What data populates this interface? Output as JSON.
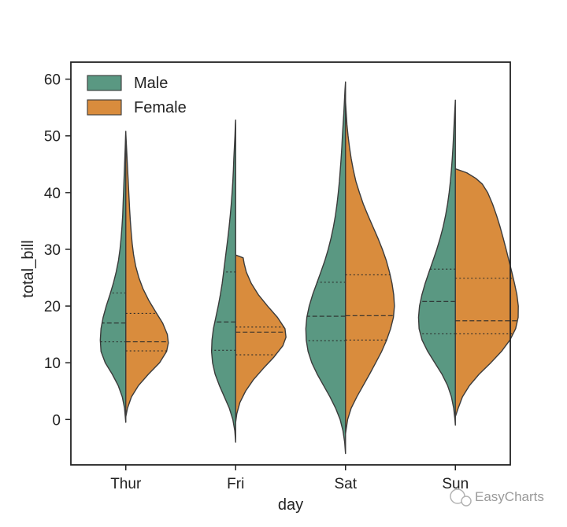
{
  "chart_data": {
    "type": "violin",
    "split": true,
    "inner": "quartile",
    "xlabel": "day",
    "ylabel": "total_bill",
    "ylim": [
      -8,
      63
    ],
    "yticks": [
      0,
      10,
      20,
      30,
      40,
      50,
      60
    ],
    "categories": [
      "Thur",
      "Fri",
      "Sat",
      "Sun"
    ],
    "legend": {
      "location": "top-left"
    },
    "series": [
      {
        "name": "Male",
        "color": "#5a9882",
        "side": "left",
        "violins": [
          {
            "category": "Thur",
            "min": -0.5,
            "max": 50.8,
            "q1": 13.7,
            "median": 17.0,
            "q3": 22.3,
            "profile": [
              [
                -0.5,
                0
              ],
              [
                0,
                0.2
              ],
              [
                2,
                0.9
              ],
              [
                4,
                2.5
              ],
              [
                6,
                5.4
              ],
              [
                8,
                9.6
              ],
              [
                10,
                14.5
              ],
              [
                12,
                17.5
              ],
              [
                14,
                18
              ],
              [
                16,
                17.5
              ],
              [
                18,
                16
              ],
              [
                20,
                13.8
              ],
              [
                22,
                11.2
              ],
              [
                24,
                8.8
              ],
              [
                26,
                6.8
              ],
              [
                28,
                5.2
              ],
              [
                30,
                4.1
              ],
              [
                32,
                3.3
              ],
              [
                34,
                2.7
              ],
              [
                36,
                2.2
              ],
              [
                38,
                1.9
              ],
              [
                40,
                1.6
              ],
              [
                42,
                1.3
              ],
              [
                44,
                1
              ],
              [
                46,
                0.7
              ],
              [
                48,
                0.4
              ],
              [
                50,
                0.15
              ],
              [
                50.8,
                0
              ]
            ]
          },
          {
            "category": "Fri",
            "min": -4,
            "max": 52.8,
            "q1": 12.2,
            "median": 17.2,
            "q3": 26.0,
            "profile": [
              [
                -4,
                0
              ],
              [
                -2,
                0.6
              ],
              [
                0,
                2
              ],
              [
                2,
                4.5
              ],
              [
                4,
                8
              ],
              [
                6,
                11.5
              ],
              [
                8,
                14.5
              ],
              [
                10,
                16.3
              ],
              [
                12,
                17
              ],
              [
                14,
                16.7
              ],
              [
                16,
                15.7
              ],
              [
                18,
                14
              ],
              [
                20,
                12.3
              ],
              [
                22,
                10.8
              ],
              [
                24,
                9.5
              ],
              [
                26,
                8.5
              ],
              [
                28,
                7.5
              ],
              [
                30,
                6.5
              ],
              [
                32,
                5.5
              ],
              [
                34,
                4.6
              ],
              [
                36,
                3.8
              ],
              [
                38,
                3.1
              ],
              [
                40,
                2.5
              ],
              [
                42,
                2
              ],
              [
                44,
                1.6
              ],
              [
                46,
                1.3
              ],
              [
                48,
                0.9
              ],
              [
                50,
                0.5
              ],
              [
                52,
                0.2
              ],
              [
                52.8,
                0
              ]
            ]
          },
          {
            "category": "Sat",
            "min": -6,
            "max": 59.5,
            "q1": 13.9,
            "median": 18.2,
            "q3": 24.2,
            "profile": [
              [
                -6,
                0
              ],
              [
                -4,
                0.6
              ],
              [
                -2,
                1.8
              ],
              [
                0,
                3.8
              ],
              [
                2,
                7
              ],
              [
                4,
                11
              ],
              [
                6,
                15.5
              ],
              [
                8,
                20
              ],
              [
                10,
                23.8
              ],
              [
                12,
                26.4
              ],
              [
                14,
                27.7
              ],
              [
                16,
                28
              ],
              [
                18,
                27.3
              ],
              [
                20,
                25.6
              ],
              [
                22,
                23.2
              ],
              [
                24,
                20.3
              ],
              [
                26,
                17.4
              ],
              [
                28,
                14.6
              ],
              [
                30,
                12.2
              ],
              [
                32,
                10.2
              ],
              [
                34,
                8.5
              ],
              [
                36,
                7.1
              ],
              [
                38,
                6
              ],
              [
                40,
                5.1
              ],
              [
                42,
                4.3
              ],
              [
                44,
                3.7
              ],
              [
                46,
                3.1
              ],
              [
                48,
                2.6
              ],
              [
                50,
                2.2
              ],
              [
                52,
                1.7
              ],
              [
                54,
                1.2
              ],
              [
                56,
                0.8
              ],
              [
                58,
                0.4
              ],
              [
                59.5,
                0
              ]
            ]
          },
          {
            "category": "Sun",
            "min": -1,
            "max": 56.3,
            "q1": 15.1,
            "median": 20.8,
            "q3": 26.5,
            "profile": [
              [
                -1,
                0
              ],
              [
                0,
                0.3
              ],
              [
                2,
                1.2
              ],
              [
                4,
                2.8
              ],
              [
                6,
                5.5
              ],
              [
                8,
                9.5
              ],
              [
                10,
                14.5
              ],
              [
                12,
                19.5
              ],
              [
                14,
                23.5
              ],
              [
                16,
                25.6
              ],
              [
                18,
                26
              ],
              [
                20,
                25.3
              ],
              [
                22,
                23.6
              ],
              [
                24,
                21.3
              ],
              [
                26,
                18.6
              ],
              [
                28,
                15.8
              ],
              [
                30,
                13.1
              ],
              [
                32,
                10.7
              ],
              [
                34,
                8.6
              ],
              [
                36,
                6.9
              ],
              [
                38,
                5.5
              ],
              [
                40,
                4.4
              ],
              [
                42,
                3.5
              ],
              [
                44,
                2.8
              ],
              [
                46,
                2.2
              ],
              [
                48,
                1.7
              ],
              [
                50,
                1.3
              ],
              [
                52,
                0.9
              ],
              [
                54,
                0.5
              ],
              [
                56.3,
                0
              ]
            ]
          }
        ]
      },
      {
        "name": "Female",
        "color": "#d98c3d",
        "side": "right",
        "violins": [
          {
            "category": "Thur",
            "min": 0.5,
            "max": 50.5,
            "q1": 12.1,
            "median": 13.7,
            "q3": 18.7,
            "profile": [
              [
                0.5,
                0
              ],
              [
                2,
                1.2
              ],
              [
                4,
                4
              ],
              [
                6,
                9
              ],
              [
                8,
                16
              ],
              [
                10,
                23.8
              ],
              [
                12,
                28.8
              ],
              [
                13.5,
                30
              ],
              [
                15,
                29.3
              ],
              [
                17,
                26
              ],
              [
                19,
                21
              ],
              [
                21,
                16.2
              ],
              [
                23,
                12.2
              ],
              [
                25,
                9.2
              ],
              [
                27,
                7
              ],
              [
                29,
                5.5
              ],
              [
                31,
                4.5
              ],
              [
                33,
                3.8
              ],
              [
                35,
                3.2
              ],
              [
                37,
                2.7
              ],
              [
                39,
                2.3
              ],
              [
                41,
                1.9
              ],
              [
                43,
                1.5
              ],
              [
                45,
                1.1
              ],
              [
                47,
                0.7
              ],
              [
                49,
                0.3
              ],
              [
                50.5,
                0
              ]
            ]
          },
          {
            "category": "Fri",
            "min": -0.5,
            "max": 29.0,
            "q1": 11.4,
            "median": 15.4,
            "q3": 16.3,
            "profile": [
              [
                -0.5,
                0
              ],
              [
                1,
                0.8
              ],
              [
                3,
                3
              ],
              [
                5,
                7
              ],
              [
                7,
                12.5
              ],
              [
                9,
                19.5
              ],
              [
                11,
                27
              ],
              [
                13,
                33.3
              ],
              [
                14.5,
                35.5
              ],
              [
                16,
                34.8
              ],
              [
                18,
                29.5
              ],
              [
                20,
                22.5
              ],
              [
                22,
                16
              ],
              [
                24,
                11
              ],
              [
                26,
                7.5
              ],
              [
                27.5,
                6
              ],
              [
                28.5,
                5.3
              ],
              [
                29,
                0
              ]
            ]
          },
          {
            "category": "Sat",
            "min": -2.5,
            "max": 56.0,
            "q1": 14.0,
            "median": 18.3,
            "q3": 25.5,
            "profile": [
              [
                -2.5,
                0
              ],
              [
                0,
                1.5
              ],
              [
                2,
                4
              ],
              [
                4,
                8
              ],
              [
                6,
                12.5
              ],
              [
                8,
                17
              ],
              [
                10,
                21.3
              ],
              [
                12,
                25.5
              ],
              [
                14,
                29
              ],
              [
                16,
                31.8
              ],
              [
                18,
                33.8
              ],
              [
                20,
                34.5
              ],
              [
                22,
                34
              ],
              [
                24,
                32.8
              ],
              [
                26,
                31
              ],
              [
                28,
                28.8
              ],
              [
                30,
                26
              ],
              [
                32,
                22.8
              ],
              [
                34,
                19.3
              ],
              [
                36,
                15.8
              ],
              [
                38,
                12.5
              ],
              [
                40,
                9.8
              ],
              [
                42,
                7.3
              ],
              [
                44,
                5.5
              ],
              [
                46,
                4
              ],
              [
                48,
                2.8
              ],
              [
                50,
                1.8
              ],
              [
                52,
                1
              ],
              [
                54,
                0.5
              ],
              [
                56,
                0
              ]
            ]
          },
          {
            "category": "Sun",
            "min": 0.5,
            "max": 44.2,
            "q1": 15.1,
            "median": 17.4,
            "q3": 24.9,
            "profile": [
              [
                0.5,
                0
              ],
              [
                2,
                2
              ],
              [
                4,
                5
              ],
              [
                6,
                10
              ],
              [
                8,
                16.8
              ],
              [
                10,
                25
              ],
              [
                12,
                32.5
              ],
              [
                14,
                38.5
              ],
              [
                16,
                42.5
              ],
              [
                18,
                44.3
              ],
              [
                20,
                44.4
              ],
              [
                22,
                43.4
              ],
              [
                24,
                41.7
              ],
              [
                26,
                39.8
              ],
              [
                28,
                37.8
              ],
              [
                30,
                35.8
              ],
              [
                32,
                33.7
              ],
              [
                34,
                31.5
              ],
              [
                36,
                29
              ],
              [
                38,
                26.2
              ],
              [
                40,
                22.8
              ],
              [
                41.5,
                19
              ],
              [
                42.5,
                14.5
              ],
              [
                43.5,
                8
              ],
              [
                44.2,
                0
              ]
            ]
          }
        ]
      }
    ]
  },
  "watermark": {
    "text": "EasyCharts"
  }
}
